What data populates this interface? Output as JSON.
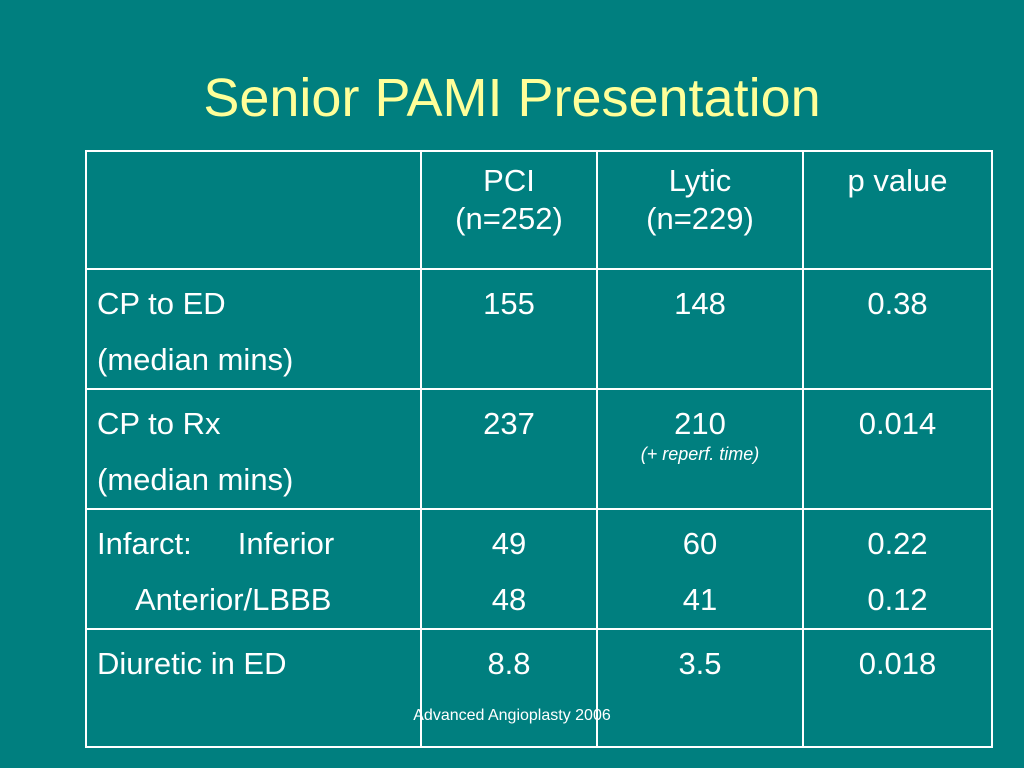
{
  "slide": {
    "title": "Senior PAMI Presentation",
    "footer": "Advanced Angioplasty 2006"
  },
  "table": {
    "headers": [
      {
        "line1": "",
        "line2": ""
      },
      {
        "line1": "PCI",
        "line2": "(n=252)"
      },
      {
        "line1": "Lytic",
        "line2": "(n=229)"
      },
      {
        "line1": "p value",
        "line2": ""
      }
    ],
    "rows": [
      {
        "label1": "CP to ED",
        "label2": "(median mins)",
        "pci": "155",
        "lytic": "148",
        "p": "0.38"
      },
      {
        "label1": "CP to Rx",
        "label2": "(median mins)",
        "pci": "237",
        "lytic": "210",
        "lytic_note": "(+ reperf. time)",
        "p": "0.014"
      },
      {
        "label1a": "Infarct:",
        "label1b": "Inferior",
        "label2": "Anterior/LBBB",
        "pci1": "49",
        "pci2": "48",
        "lytic1": "60",
        "lytic2": "41",
        "p1": "0.22",
        "p2": "0.12"
      },
      {
        "label1": "Diuretic in ED",
        "pci": "8.8",
        "lytic": "3.5",
        "p": "0.018"
      }
    ]
  }
}
